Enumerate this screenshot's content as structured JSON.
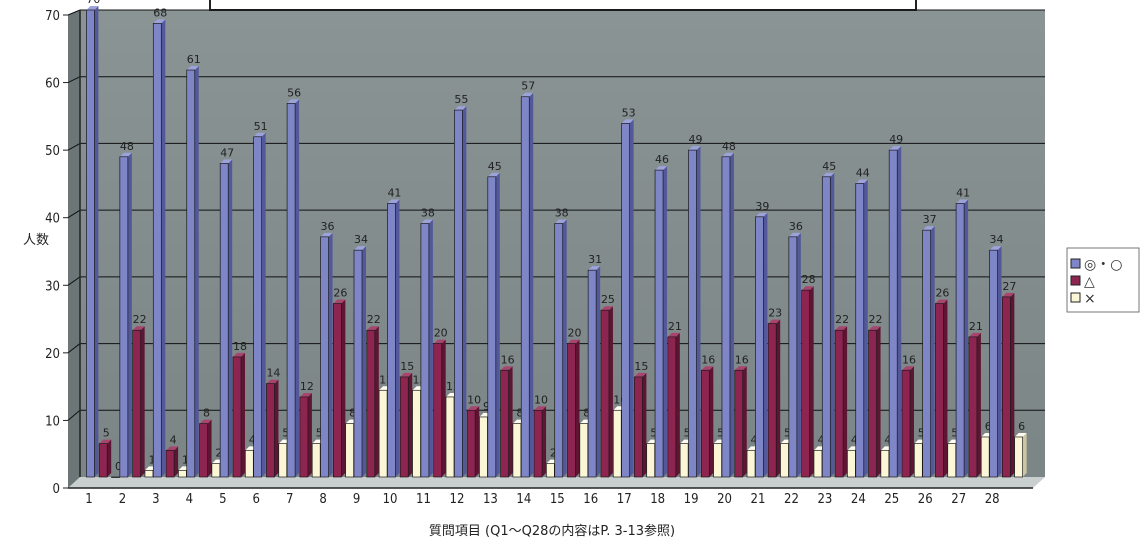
{
  "chart_data": {
    "type": "bar",
    "ylabel": "人数",
    "xlabel": "質問項目 (Q1～Q28の内容はP. 3-13参照)",
    "ylim": [
      0,
      70
    ],
    "yticks": [
      0,
      10,
      20,
      30,
      40,
      50,
      60,
      70
    ],
    "categories": [
      "1",
      "2",
      "3",
      "4",
      "5",
      "6",
      "7",
      "8",
      "9",
      "10",
      "11",
      "12",
      "13",
      "14",
      "15",
      "16",
      "17",
      "18",
      "19",
      "20",
      "21",
      "22",
      "23",
      "24",
      "25",
      "26",
      "27",
      "28"
    ],
    "series": [
      {
        "name": "◎・○",
        "color": "#7f86c8",
        "values": [
          70,
          48,
          68,
          61,
          47,
          51,
          56,
          36,
          34,
          41,
          38,
          55,
          45,
          57,
          38,
          31,
          53,
          46,
          49,
          48,
          39,
          36,
          45,
          44,
          49,
          37,
          41,
          34
        ]
      },
      {
        "name": "△",
        "color": "#8e2450",
        "values": [
          5,
          22,
          4,
          8,
          18,
          14,
          12,
          26,
          22,
          15,
          20,
          10,
          16,
          10,
          20,
          25,
          15,
          21,
          16,
          16,
          23,
          28,
          22,
          22,
          16,
          26,
          21,
          27
        ]
      },
      {
        "name": "×",
        "color": "#fbf7d6",
        "values": [
          0,
          1,
          1,
          2,
          4,
          5,
          5,
          8,
          13,
          13,
          12,
          9,
          8,
          2,
          8,
          10,
          5,
          5,
          5,
          4,
          5,
          4,
          4,
          4,
          5,
          5,
          6,
          6
        ]
      }
    ],
    "grid": true,
    "legend_position": "right",
    "plot_background": "#808a8a",
    "grid_color": "#111111"
  }
}
